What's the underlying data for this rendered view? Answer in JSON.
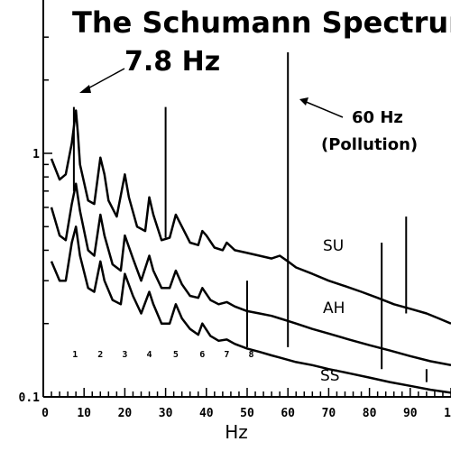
{
  "chart_data": {
    "type": "line",
    "title": "The Schumann Spectrum",
    "xlabel": "Hz",
    "ylabel": "",
    "xlim": [
      0,
      100
    ],
    "ylim": [
      0.1,
      3
    ],
    "y_scale": "log",
    "grid": false,
    "x_ticks": [
      "0",
      "10",
      "20",
      "30",
      "40",
      "50",
      "60",
      "70",
      "80",
      "90",
      "1"
    ],
    "y_ticks": [
      {
        "value": 1,
        "label": "1"
      },
      {
        "value": 0.1,
        "label": "0.1"
      }
    ],
    "annotations": [
      {
        "text": "7.8 Hz",
        "points_to_x": 7.8
      },
      {
        "text": "60 Hz",
        "points_to_x": 60
      },
      {
        "text": "(Pollution)",
        "points_to_x": 60
      }
    ],
    "mode_numbers": [
      "1",
      "2",
      "3",
      "4",
      "5",
      "6",
      "7",
      "8"
    ],
    "mode_x": [
      7.8,
      14,
      20,
      26,
      32.5,
      39,
      45,
      51
    ],
    "series": [
      {
        "name": "SU",
        "x": [
          2,
          4,
          5.5,
          7,
          8,
          8.5,
          9,
          11,
          12.5,
          14,
          15,
          16,
          18,
          20,
          21,
          23,
          25,
          26,
          27,
          29,
          31,
          32.5,
          34,
          36,
          38,
          39,
          40,
          42,
          44,
          45,
          47,
          50,
          53,
          56,
          58,
          60,
          62,
          66,
          70,
          74,
          78,
          82,
          86,
          90,
          94,
          97,
          100
        ],
        "y": [
          0.95,
          0.78,
          0.82,
          1.1,
          1.5,
          1.2,
          0.9,
          0.64,
          0.62,
          0.96,
          0.82,
          0.64,
          0.55,
          0.82,
          0.66,
          0.5,
          0.48,
          0.66,
          0.56,
          0.44,
          0.45,
          0.56,
          0.5,
          0.43,
          0.42,
          0.48,
          0.46,
          0.41,
          0.4,
          0.43,
          0.4,
          0.39,
          0.38,
          0.37,
          0.38,
          0.36,
          0.34,
          0.32,
          0.3,
          0.285,
          0.27,
          0.255,
          0.24,
          0.23,
          0.22,
          0.21,
          0.2
        ]
      },
      {
        "name": "AH",
        "x": [
          2,
          4,
          5.5,
          7,
          8,
          9,
          11,
          12.5,
          14,
          15,
          17,
          19,
          20,
          22,
          24,
          26,
          27,
          29,
          31,
          32.5,
          34,
          36,
          38,
          39,
          41,
          43,
          45,
          47,
          50,
          53,
          56,
          58,
          60,
          62,
          66,
          70,
          75,
          80,
          85,
          90,
          95,
          100
        ],
        "y": [
          0.6,
          0.46,
          0.44,
          0.62,
          0.75,
          0.58,
          0.4,
          0.38,
          0.56,
          0.46,
          0.35,
          0.33,
          0.46,
          0.37,
          0.3,
          0.38,
          0.33,
          0.28,
          0.28,
          0.33,
          0.29,
          0.26,
          0.255,
          0.28,
          0.25,
          0.24,
          0.245,
          0.235,
          0.225,
          0.22,
          0.215,
          0.21,
          0.205,
          0.2,
          0.19,
          0.182,
          0.172,
          0.163,
          0.155,
          0.147,
          0.14,
          0.135
        ]
      },
      {
        "name": "SS",
        "x": [
          2,
          4,
          5.5,
          7,
          8,
          9,
          11,
          12.5,
          14,
          15,
          17,
          19,
          20,
          22,
          24,
          26,
          27,
          29,
          31,
          32.5,
          34,
          36,
          38,
          39,
          41,
          43,
          45,
          47,
          50,
          53,
          56,
          58,
          60,
          62,
          66,
          70,
          75,
          80,
          85,
          90,
          95,
          100
        ],
        "y": [
          0.36,
          0.3,
          0.3,
          0.43,
          0.5,
          0.38,
          0.28,
          0.27,
          0.36,
          0.3,
          0.25,
          0.24,
          0.32,
          0.26,
          0.22,
          0.27,
          0.24,
          0.2,
          0.2,
          0.24,
          0.21,
          0.19,
          0.18,
          0.2,
          0.178,
          0.17,
          0.172,
          0.165,
          0.158,
          0.153,
          0.148,
          0.145,
          0.142,
          0.139,
          0.135,
          0.13,
          0.125,
          0.12,
          0.115,
          0.111,
          0.107,
          0.104
        ]
      }
    ],
    "spikes": [
      {
        "x": 7.5,
        "y_from": 0.7,
        "y_to": 1.55
      },
      {
        "x": 30,
        "y_from": 0.45,
        "y_to": 1.55
      },
      {
        "x": 60,
        "y_from": 0.16,
        "y_to": 2.6
      },
      {
        "x": 50,
        "y_from": 0.16,
        "y_to": 0.3
      },
      {
        "x": 83,
        "y_from": 0.13,
        "y_to": 0.43
      },
      {
        "x": 89,
        "y_from": 0.22,
        "y_to": 0.55
      },
      {
        "x": 94,
        "y_from": 0.115,
        "y_to": 0.13
      }
    ]
  }
}
